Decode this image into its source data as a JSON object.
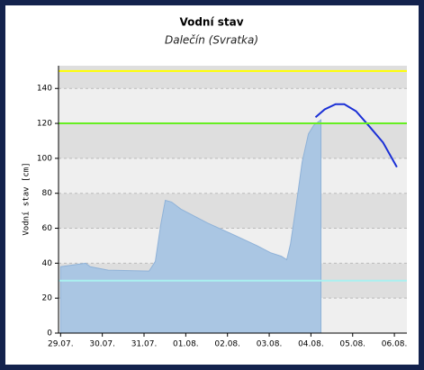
{
  "chart_data": {
    "type": "area",
    "title": "Vodní stav",
    "subtitle": "Dalečín (Svratka)",
    "y_label": "Vodní stav [cm]",
    "series": [
      {
        "name": null,
        "color": "#8fb2d8",
        "fill": "#aac6e3",
        "x": [
          0,
          0.6,
          0.71,
          1.14,
          2.12,
          2.27,
          2.4,
          2.51,
          2.66,
          2.88,
          3.52,
          4.17,
          4.71,
          5.03,
          5.29,
          5.42,
          5.51,
          5.64,
          5.79,
          5.94,
          6.07,
          6.24
        ],
        "values": [
          38,
          40,
          38,
          36,
          35.5,
          41,
          62,
          76,
          75,
          71,
          63,
          56,
          50,
          46,
          44,
          42,
          51,
          72,
          98,
          114,
          119,
          122
        ]
      },
      {
        "name": null,
        "color": "#1a2fd6",
        "x": [
          6.11,
          6.33,
          6.59,
          6.8,
          7.08,
          7.41,
          7.73,
          8.06
        ],
        "values": [
          123.5,
          128,
          131,
          131,
          127,
          118,
          109,
          95
        ]
      }
    ],
    "thresholds": [
      {
        "value": 150,
        "color": "#ffff00"
      },
      {
        "value": 120,
        "color": "#66ee22"
      },
      {
        "value": 30,
        "color": "#aaf0f0"
      }
    ],
    "xlim": [
      -0.05,
      8.3
    ],
    "ylim": [
      0,
      153
    ],
    "xticks": [
      {
        "value": 0,
        "label": "29.07."
      },
      {
        "value": 1,
        "label": "30.07."
      },
      {
        "value": 2,
        "label": "31.07."
      },
      {
        "value": 3,
        "label": "01.08."
      },
      {
        "value": 4,
        "label": "02.08."
      },
      {
        "value": 5,
        "label": "03.08."
      },
      {
        "value": 6,
        "label": "04.08."
      },
      {
        "value": 7,
        "label": "05.08."
      },
      {
        "value": 8,
        "label": "06.08."
      }
    ],
    "yticks": [
      0,
      20,
      40,
      60,
      80,
      100,
      120,
      140
    ],
    "grid": true
  }
}
